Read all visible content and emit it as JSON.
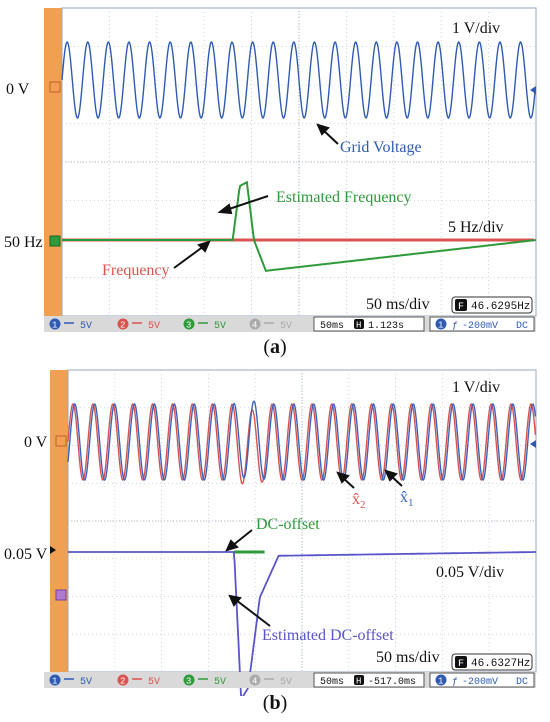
{
  "panel_a": {
    "caption": "a",
    "labels": {
      "zero_v": "0 V",
      "hz50": "50 Hz",
      "volt_div": "1 V/div",
      "hz_div": "5 Hz/div",
      "time_div": "50 ms/div",
      "grid_voltage": "Grid Voltage",
      "estimated_frequency": "Estimated Frequency",
      "frequency": "Frequency"
    },
    "status": {
      "ch1": "5V",
      "ch2": "5V",
      "ch3": "5V",
      "ch4": "5V",
      "timebase": "50ms",
      "position": "1.123s",
      "trig_level": "-200mV",
      "coupling": "DC",
      "freq_readout": "46.6295Hz",
      "h_marker": "H",
      "f_marker": "F"
    }
  },
  "panel_b": {
    "caption": "b",
    "labels": {
      "zero_v": "0 V",
      "v005": "0.05 V",
      "volt_div": "1 V/div",
      "v005_div": "0.05 V/div",
      "time_div": "50 ms/div",
      "x2": "x̂",
      "x2_sub": "2",
      "x1": "x̂",
      "x1_sub": "1",
      "dc_offset": "DC-offset",
      "est_dc_offset": "Estimated DC-offset"
    },
    "status": {
      "ch1": "5V",
      "ch2": "5V",
      "ch3": "5V",
      "ch4": "5V",
      "timebase": "50ms",
      "position": "-517.0ms",
      "trig_level": "-200mV",
      "coupling": "DC",
      "freq_readout": "46.6327Hz",
      "h_marker": "H",
      "f_marker": "F"
    }
  },
  "colors": {
    "grid_voltage": "#2f5bb3",
    "frequency": "#d9534f",
    "estimated_frequency": "#2e9a3a",
    "x1": "#3a64c0",
    "x2": "#d9534f",
    "dc_offset": "#2e9a3a",
    "estimated_dc_offset": "#5a55c8",
    "sidebar": "#f0a050",
    "status_bar": "#d9d9d9"
  },
  "chart_data": [
    {
      "type": "line",
      "title": "",
      "xlabel": "50 ms/div",
      "series": [
        {
          "name": "Grid Voltage",
          "scale": "1 V/div",
          "shape": "sinusoid",
          "cycles_on_screen": 23
        },
        {
          "name": "Frequency",
          "scale": "5 Hz/div",
          "values_hz": [
            50,
            50,
            50
          ],
          "x_divisions": [
            0,
            3.6,
            10
          ]
        },
        {
          "name": "Estimated Frequency",
          "scale": "5 Hz/div",
          "x_divisions": [
            0,
            3.6,
            3.75,
            3.9,
            4.05,
            4.3,
            10
          ],
          "values_hz": [
            50,
            50,
            57,
            57.5,
            50,
            46,
            50
          ]
        }
      ]
    },
    {
      "type": "line",
      "title": "",
      "xlabel": "50 ms/div",
      "series": [
        {
          "name": "x̂2",
          "scale": "1 V/div",
          "shape": "sinusoid"
        },
        {
          "name": "x̂1",
          "scale": "1 V/div",
          "shape": "sinusoid"
        },
        {
          "name": "DC-offset",
          "scale": "0.05 V/div",
          "x_divisions": [
            0,
            3.6,
            4.2,
            10
          ],
          "values_v": [
            0.05,
            0.05,
            0.05,
            0.05
          ]
        },
        {
          "name": "Estimated DC-offset",
          "scale": "0.05 V/div",
          "x_divisions": [
            0,
            3.55,
            3.7,
            3.85,
            4.1,
            4.5,
            10
          ],
          "values_v": [
            0.05,
            0.05,
            -0.145,
            -0.13,
            -0.01,
            0.045,
            0.05
          ]
        }
      ]
    }
  ]
}
